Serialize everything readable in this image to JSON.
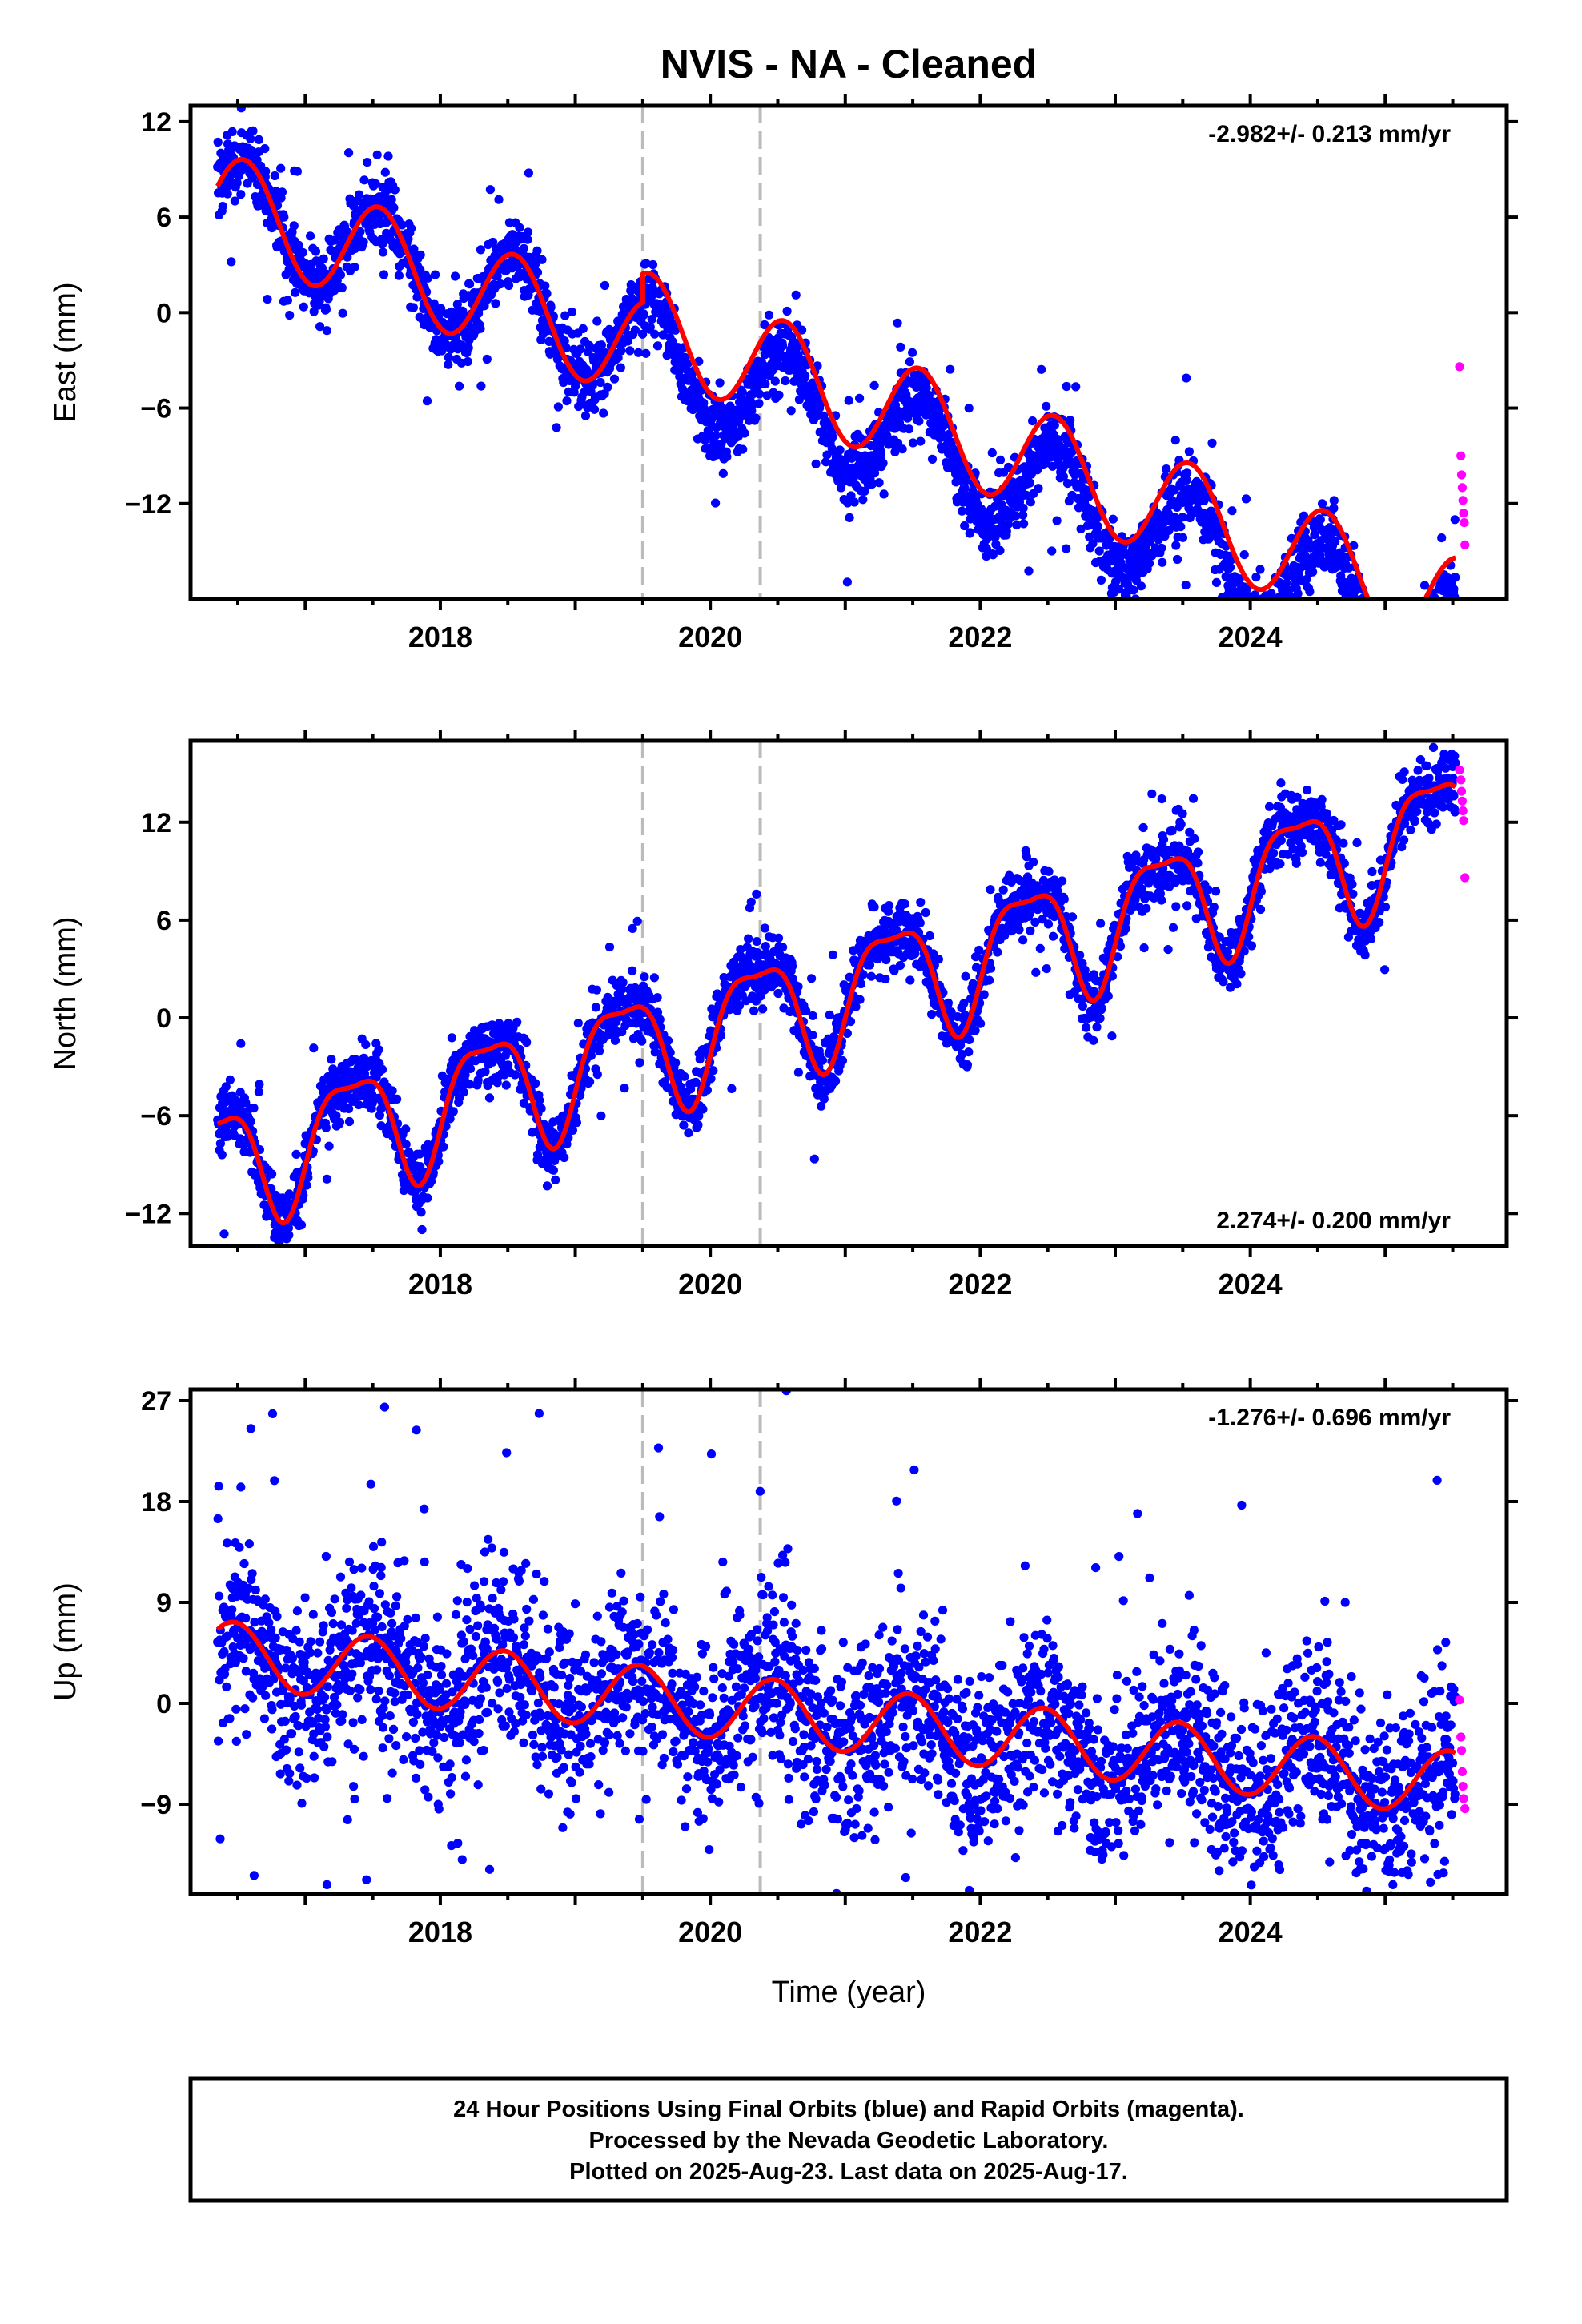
{
  "title": "NVIS  - NA - Cleaned",
  "xlabel": "Time (year)",
  "colors": {
    "final_orbits": "#0000ff",
    "rapid_orbits": "#ff00ff",
    "model": "#ff0000",
    "event_lines": "#bbbbbb",
    "frame": "#000000"
  },
  "footer": {
    "line1": "24 Hour Positions Using Final Orbits (blue) and Rapid Orbits (magenta).",
    "line2": "Processed by the Nevada Geodetic Laboratory.",
    "line3": "Plotted on 2025-Aug-23. Last data on 2025-Aug-17."
  },
  "chart_data": [
    {
      "type": "scatter",
      "component": "east",
      "ylabel": "East (mm)",
      "rate_label": "-2.982+/- 0.213 mm/yr",
      "rate_position": "top-right",
      "xlim": [
        2016.15,
        2025.9
      ],
      "ylim": [
        -18,
        13
      ],
      "yticks": [
        12,
        6,
        0,
        -6,
        -12
      ],
      "xticks": [
        2018,
        2020,
        2022,
        2024
      ],
      "event_lines_x": [
        2019.5,
        2020.37
      ],
      "series": [
        {
          "type": "scatter",
          "color": "blue",
          "x_range": [
            2016.35,
            2025.52
          ],
          "trend": {
            "value_at_start": 7.0,
            "rate_per_year": -2.982
          },
          "seasonal": [
            {
              "amplitude": 3.2,
              "phase": -1.9
            }
          ],
          "noise": 1.1,
          "outlier_ratio": 0.02
        },
        {
          "type": "scatter",
          "color": "magenta",
          "x": [
            2025.55,
            2025.56,
            2025.565,
            2025.57,
            2025.575,
            2025.58,
            2025.585,
            2025.59
          ],
          "y": [
            -3.4,
            -9.0,
            -10.2,
            -11.0,
            -11.8,
            -12.6,
            -13.2,
            -14.6
          ]
        },
        {
          "type": "line",
          "color": "red",
          "segments": [
            {
              "x_range": [
                2016.35,
                2019.5
              ],
              "trend": {
                "value_at_start": 7.0,
                "rate_per_year": -2.982
              },
              "seasonal": [
                {
                  "amplitude": 3.2,
                  "phase": -1.9
                }
              ]
            },
            {
              "x_range": [
                2019.5,
                2020.37
              ],
              "trend": {
                "value_at_start": 7.0,
                "rate_per_year": -2.982
              },
              "seasonal": [
                {
                  "amplitude": 3.2,
                  "phase": -1.9
                }
              ],
              "offset": 1.8
            },
            {
              "x_range": [
                2020.37,
                2025.52
              ],
              "trend": {
                "value_at_start": 7.0,
                "rate_per_year": -2.982
              },
              "seasonal": [
                {
                  "amplitude": 3.2,
                  "phase": -1.9
                }
              ],
              "offset": 1.8
            }
          ]
        }
      ]
    },
    {
      "type": "scatter",
      "component": "north",
      "ylabel": "North (mm)",
      "rate_label": "2.274+/- 0.200 mm/yr",
      "rate_position": "bottom-right",
      "xlim": [
        2016.15,
        2025.9
      ],
      "ylim": [
        -14,
        17
      ],
      "yticks": [
        12,
        6,
        0,
        -6,
        -12
      ],
      "xticks": [
        2018,
        2020,
        2022,
        2024
      ],
      "event_lines_x": [
        2019.5,
        2020.37
      ],
      "series": [
        {
          "type": "scatter",
          "color": "blue",
          "x_range": [
            2016.35,
            2025.52
          ],
          "trend": {
            "value_at_start": -9.0,
            "rate_per_year": 2.274
          },
          "seasonal": [
            {
              "amplitude": 3.6,
              "phase": -0.6
            },
            {
              "amplitude": 1.1,
              "phase": 0.4
            }
          ],
          "noise": 1.0,
          "outlier_ratio": 0.015
        },
        {
          "type": "scatter",
          "color": "magenta",
          "x": [
            2025.55,
            2025.56,
            2025.565,
            2025.57,
            2025.575,
            2025.58,
            2025.59
          ],
          "y": [
            15.2,
            14.6,
            13.9,
            13.3,
            12.7,
            12.1,
            8.6
          ]
        },
        {
          "type": "line",
          "color": "red",
          "segments": [
            {
              "x_range": [
                2016.35,
                2025.52
              ],
              "trend": {
                "value_at_start": -9.0,
                "rate_per_year": 2.274
              },
              "seasonal": [
                {
                  "amplitude": 3.6,
                  "phase": -0.6
                },
                {
                  "amplitude": 1.1,
                  "phase": 0.4
                }
              ]
            }
          ]
        }
      ]
    },
    {
      "type": "scatter",
      "component": "up",
      "ylabel": "Up (mm)",
      "rate_label": "-1.276+/- 0.696 mm/yr",
      "rate_position": "top-right",
      "xlim": [
        2016.15,
        2025.9
      ],
      "ylim": [
        -17,
        28
      ],
      "yticks": [
        27,
        18,
        9,
        0,
        -9
      ],
      "xticks": [
        2018,
        2020,
        2022,
        2024
      ],
      "event_lines_x": [
        2019.5,
        2020.37
      ],
      "show_xlabel": true,
      "series": [
        {
          "type": "scatter",
          "color": "blue",
          "x_range": [
            2016.35,
            2025.52
          ],
          "trend": {
            "value_at_start": 4.5,
            "rate_per_year": -1.276
          },
          "seasonal": [
            {
              "amplitude": 2.9,
              "phase": -1.4
            }
          ],
          "noise": 4.0,
          "outlier_ratio": 0.03
        },
        {
          "type": "scatter",
          "color": "magenta",
          "x": [
            2025.55,
            2025.56,
            2025.565,
            2025.57,
            2025.575,
            2025.58,
            2025.59
          ],
          "y": [
            0.3,
            -3.0,
            -4.2,
            -6.1,
            -7.4,
            -8.5,
            -9.4
          ]
        },
        {
          "type": "line",
          "color": "red",
          "segments": [
            {
              "x_range": [
                2016.35,
                2025.52
              ],
              "trend": {
                "value_at_start": 4.5,
                "rate_per_year": -1.276
              },
              "seasonal": [
                {
                  "amplitude": 2.9,
                  "phase": -1.4
                }
              ]
            }
          ]
        }
      ]
    }
  ]
}
